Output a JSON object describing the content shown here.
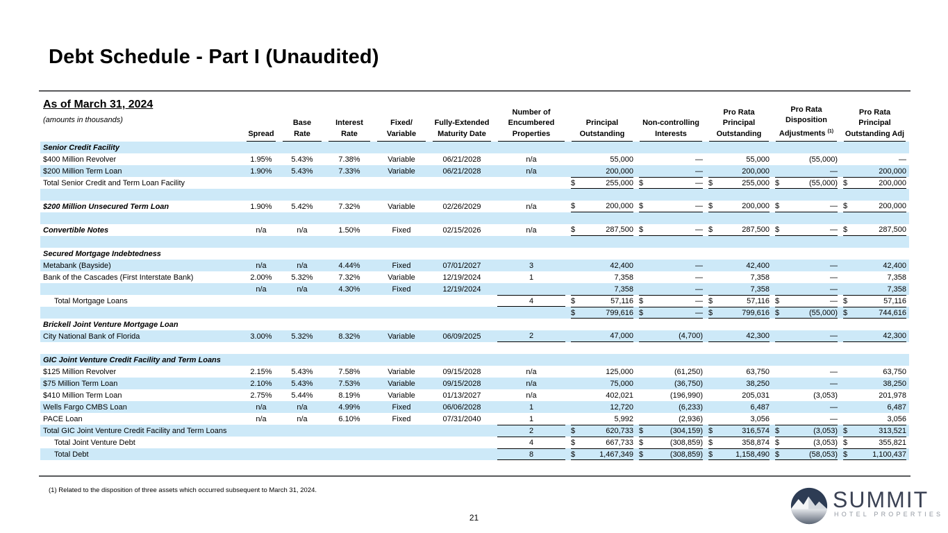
{
  "page": {
    "title": "Debt Schedule - Part I (Unaudited)",
    "footnote": "(1) Related to the disposition of three assets which occurred subsequent to March 31, 2024.",
    "page_number": "21"
  },
  "logo": {
    "name": "SUMMIT",
    "tagline": "HOTEL PROPERTIES"
  },
  "colors": {
    "row_highlight_blue": "#cde9f8",
    "rule_gray": "#58595b",
    "logo_navy": "#2d3c54",
    "logo_text": "#3b4254",
    "logo_tagline_gray": "#9298a1"
  },
  "table": {
    "as_of": "As of March 31, 2024",
    "amounts_note": "(amounts in thousands)",
    "columns": [
      {
        "key": "label",
        "lines": []
      },
      {
        "key": "spread",
        "lines": [
          "Spread"
        ]
      },
      {
        "key": "base-rate",
        "lines": [
          "Base",
          "Rate"
        ]
      },
      {
        "key": "interest-rate",
        "lines": [
          "Interest",
          "Rate"
        ]
      },
      {
        "key": "fixed-variable",
        "lines": [
          "Fixed/",
          "Variable"
        ]
      },
      {
        "key": "maturity-date",
        "lines": [
          "Fully-Extended",
          "Maturity Date"
        ]
      },
      {
        "key": "encumbered-properties",
        "lines": [
          "Number of",
          "Encumbered",
          "Properties"
        ]
      },
      {
        "key": "principal-outstanding",
        "lines": [
          "Principal",
          "Outstanding"
        ]
      },
      {
        "key": "noncontrolling-interests",
        "lines": [
          "Non-controlling",
          "Interests"
        ]
      },
      {
        "key": "pro-rata-principal-outstanding",
        "lines": [
          "Pro Rata",
          "Principal",
          "Outstanding"
        ]
      },
      {
        "key": "pro-rata-disposition-adjustments",
        "lines": [
          "Pro Rata",
          "Disposition",
          "Adjustments"
        ],
        "sup": "(1)"
      },
      {
        "key": "pro-rata-principal-outstanding-adj",
        "lines": [
          "Pro Rata",
          "Principal",
          "Outstanding Adj"
        ]
      }
    ],
    "rows": [
      {
        "label": "Senior Credit Facility",
        "bi": true
      },
      {
        "label": "$400 Million Revolver",
        "cells": [
          "1.95%",
          "5.43%",
          "7.38%",
          "Variable",
          "06/21/2028",
          "n/a"
        ],
        "money": [
          "55,000",
          "—",
          "55,000",
          "(55,000)",
          "—"
        ]
      },
      {
        "label": "$200 Million Term Loan",
        "cells": [
          "1.90%",
          "5.43%",
          "7.33%",
          "Variable",
          "06/21/2028",
          "n/a"
        ],
        "money": [
          "200,000",
          "—",
          "200,000",
          "—",
          "200,000"
        ]
      },
      {
        "label": "Total Senior Credit and Term Loan Facility",
        "money": [
          "255,000",
          "—",
          "255,000",
          "(55,000)",
          "200,000"
        ],
        "dollar": true,
        "bm": "tb"
      },
      {
        "label": ""
      },
      {
        "label": "$200 Million Unsecured Term Loan",
        "bi": true,
        "cells": [
          "1.90%",
          "5.42%",
          "7.32%",
          "Variable",
          "02/26/2029",
          "n/a"
        ],
        "money": [
          "200,000",
          "—",
          "200,000",
          "—",
          "200,000"
        ],
        "dollar": true,
        "bm": "b"
      },
      {
        "label": ""
      },
      {
        "label": "Convertible Notes",
        "bi": true,
        "cells": [
          "n/a",
          "n/a",
          "1.50%",
          "Fixed",
          "02/15/2026",
          "n/a"
        ],
        "money": [
          "287,500",
          "—",
          "287,500",
          "—",
          "287,500"
        ],
        "dollar": true,
        "bm": "b"
      },
      {
        "label": ""
      },
      {
        "label": "Secured Mortgage Indebtedness",
        "bi": true
      },
      {
        "label": "Metabank (Bayside)",
        "cells": [
          "n/a",
          "n/a",
          "4.44%",
          "Fixed",
          "07/01/2027",
          "3"
        ],
        "money": [
          "42,400",
          "—",
          "42,400",
          "—",
          "42,400"
        ]
      },
      {
        "label": "Bank of the Cascades (First Interstate Bank)",
        "cells": [
          "2.00%",
          "5.32%",
          "7.32%",
          "Variable",
          "12/19/2024",
          "1"
        ],
        "money": [
          "7,358",
          "—",
          "7,358",
          "—",
          "7,358"
        ]
      },
      {
        "label": "",
        "cells": [
          "n/a",
          "n/a",
          "4.30%",
          "Fixed",
          "12/19/2024",
          ""
        ],
        "money": [
          "7,358",
          "—",
          "7,358",
          "—",
          "7,358"
        ]
      },
      {
        "label": "Total Mortgage Loans",
        "ind": true,
        "cells": [
          "",
          "",
          "",
          "",
          "",
          "4"
        ],
        "money": [
          "57,116",
          "—",
          "57,116",
          "—",
          "57,116"
        ],
        "dollar": true,
        "bm": "t",
        "bp": "tb"
      },
      {
        "label": "",
        "money": [
          "799,616",
          "—",
          "799,616",
          "(55,000)",
          "744,616"
        ],
        "dollar": true,
        "bm": "tb"
      },
      {
        "label": "Brickell Joint Venture Mortgage Loan",
        "bi": true
      },
      {
        "label": "City National Bank of Florida",
        "cells": [
          "3.00%",
          "5.32%",
          "8.32%",
          "Variable",
          "06/09/2025",
          "2"
        ],
        "money": [
          "47,000",
          "(4,700)",
          "42,300",
          "—",
          "42,300"
        ],
        "bm": "b",
        "bp": "b"
      },
      {
        "label": ""
      },
      {
        "label": "GIC Joint Venture Credit Facility and Term Loans",
        "bi": true
      },
      {
        "label": "$125 Million Revolver",
        "cells": [
          "2.15%",
          "5.43%",
          "7.58%",
          "Variable",
          "09/15/2028",
          "n/a"
        ],
        "money": [
          "125,000",
          "(61,250)",
          "63,750",
          "—",
          "63,750"
        ]
      },
      {
        "label": "$75 Million Term Loan",
        "cells": [
          "2.10%",
          "5.43%",
          "7.53%",
          "Variable",
          "09/15/2028",
          "n/a"
        ],
        "money": [
          "75,000",
          "(36,750)",
          "38,250",
          "—",
          "38,250"
        ]
      },
      {
        "label": "$410 Million Term Loan",
        "cells": [
          "2.75%",
          "5.44%",
          "8.19%",
          "Variable",
          "01/13/2027",
          "n/a"
        ],
        "money": [
          "402,021",
          "(196,990)",
          "205,031",
          "(3,053)",
          "201,978"
        ]
      },
      {
        "label": "Wells Fargo CMBS Loan",
        "cells": [
          "n/a",
          "n/a",
          "4.99%",
          "Fixed",
          "06/06/2028",
          "1"
        ],
        "money": [
          "12,720",
          "(6,233)",
          "6,487",
          "—",
          "6,487"
        ]
      },
      {
        "label": "PACE Loan",
        "cells": [
          "n/a",
          "n/a",
          "6.10%",
          "Fixed",
          "07/31/2040",
          "1"
        ],
        "money": [
          "5,992",
          "(2,936)",
          "3,056",
          "—",
          "3,056"
        ]
      },
      {
        "label": "Total GIC Joint Venture Credit Facility and Term Loans",
        "cells": [
          "",
          "",
          "",
          "",
          "",
          "2"
        ],
        "money": [
          "620,733",
          "(304,159)",
          "316,574",
          "(3,053)",
          "313,521"
        ],
        "dollar": true,
        "bm": "t",
        "bp": "t"
      },
      {
        "label": "Total Joint Venture Debt",
        "ind": true,
        "cells": [
          "",
          "",
          "",
          "",
          "",
          "4"
        ],
        "money": [
          "667,733",
          "(308,859)",
          "358,874",
          "(3,053)",
          "355,821"
        ],
        "dollar": true,
        "bm": "t",
        "bp": "t"
      },
      {
        "label": "Total Debt",
        "ind": true,
        "cells": [
          "",
          "",
          "",
          "",
          "",
          "8"
        ],
        "money": [
          "1,467,349",
          "(308,859)",
          "1,158,490",
          "(58,053)",
          "1,100,437"
        ],
        "dollar": true,
        "bm": "tb",
        "bp": "tb"
      }
    ]
  }
}
